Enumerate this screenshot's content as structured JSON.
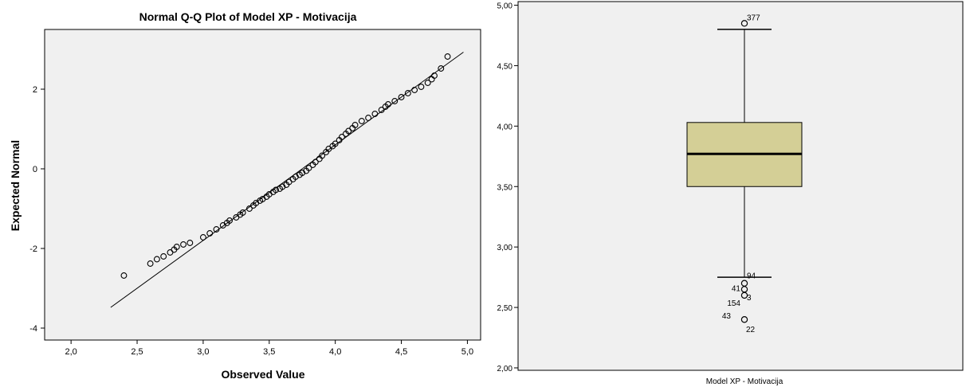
{
  "chart_data": [
    {
      "type": "scatter",
      "title": "Normal Q-Q Plot of Model XP - Motivacija",
      "xlabel": "Observed Value",
      "ylabel": "Expected Normal",
      "xlim": [
        1.8,
        5.1
      ],
      "ylim": [
        -4.3,
        3.5
      ],
      "xticks": [
        "2,0",
        "2,5",
        "3,0",
        "3,5",
        "4,0",
        "4,5",
        "5,0"
      ],
      "yticks": [
        "-4",
        "-2",
        "0",
        "2"
      ],
      "grid": false,
      "reference_line": {
        "x": [
          2.3,
          4.97
        ],
        "y": [
          -3.48,
          2.93
        ]
      },
      "points": [
        [
          2.4,
          -2.68
        ],
        [
          2.6,
          -2.38
        ],
        [
          2.65,
          -2.27
        ],
        [
          2.7,
          -2.2
        ],
        [
          2.75,
          -2.1
        ],
        [
          2.78,
          -2.03
        ],
        [
          2.8,
          -1.96
        ],
        [
          2.85,
          -1.9
        ],
        [
          2.9,
          -1.86
        ],
        [
          3.0,
          -1.72
        ],
        [
          3.05,
          -1.62
        ],
        [
          3.1,
          -1.52
        ],
        [
          3.15,
          -1.42
        ],
        [
          3.18,
          -1.36
        ],
        [
          3.2,
          -1.3
        ],
        [
          3.25,
          -1.22
        ],
        [
          3.28,
          -1.15
        ],
        [
          3.3,
          -1.1
        ],
        [
          3.35,
          -1.0
        ],
        [
          3.38,
          -0.92
        ],
        [
          3.4,
          -0.86
        ],
        [
          3.43,
          -0.8
        ],
        [
          3.45,
          -0.76
        ],
        [
          3.48,
          -0.7
        ],
        [
          3.5,
          -0.64
        ],
        [
          3.53,
          -0.58
        ],
        [
          3.55,
          -0.53
        ],
        [
          3.58,
          -0.5
        ],
        [
          3.6,
          -0.45
        ],
        [
          3.63,
          -0.4
        ],
        [
          3.65,
          -0.33
        ],
        [
          3.68,
          -0.26
        ],
        [
          3.7,
          -0.2
        ],
        [
          3.73,
          -0.15
        ],
        [
          3.75,
          -0.1
        ],
        [
          3.78,
          -0.05
        ],
        [
          3.8,
          0.02
        ],
        [
          3.83,
          0.1
        ],
        [
          3.85,
          0.17
        ],
        [
          3.88,
          0.25
        ],
        [
          3.9,
          0.33
        ],
        [
          3.93,
          0.42
        ],
        [
          3.95,
          0.5
        ],
        [
          3.98,
          0.57
        ],
        [
          4.0,
          0.63
        ],
        [
          4.03,
          0.72
        ],
        [
          4.05,
          0.8
        ],
        [
          4.08,
          0.88
        ],
        [
          4.1,
          0.95
        ],
        [
          4.13,
          1.02
        ],
        [
          4.15,
          1.1
        ],
        [
          4.2,
          1.2
        ],
        [
          4.25,
          1.28
        ],
        [
          4.3,
          1.38
        ],
        [
          4.35,
          1.48
        ],
        [
          4.38,
          1.56
        ],
        [
          4.4,
          1.62
        ],
        [
          4.45,
          1.7
        ],
        [
          4.5,
          1.8
        ],
        [
          4.55,
          1.9
        ],
        [
          4.6,
          1.98
        ],
        [
          4.65,
          2.06
        ],
        [
          4.7,
          2.16
        ],
        [
          4.73,
          2.25
        ],
        [
          4.75,
          2.34
        ],
        [
          4.8,
          2.52
        ],
        [
          4.85,
          2.82
        ]
      ]
    },
    {
      "type": "box",
      "category": "Model XP - Motivacija",
      "ylim": [
        1.98,
        5.03
      ],
      "yticks": [
        "2,00",
        "2,50",
        "3,00",
        "3,50",
        "4,00",
        "4,50",
        "5,00"
      ],
      "whisker_low": 2.75,
      "q1": 3.5,
      "median": 3.77,
      "q3": 4.03,
      "whisker_high": 4.8,
      "outliers": [
        {
          "label": "377",
          "value": 4.85
        },
        {
          "label": "94",
          "value": 2.7
        },
        {
          "label": "41",
          "value": 2.65
        },
        {
          "label": "3",
          "value": 2.6
        },
        {
          "label": "154",
          "value": 2.6
        },
        {
          "label": "43",
          "value": 2.4
        },
        {
          "label": "22",
          "value": 2.4
        }
      ],
      "box_color": "#d4cf96"
    }
  ]
}
